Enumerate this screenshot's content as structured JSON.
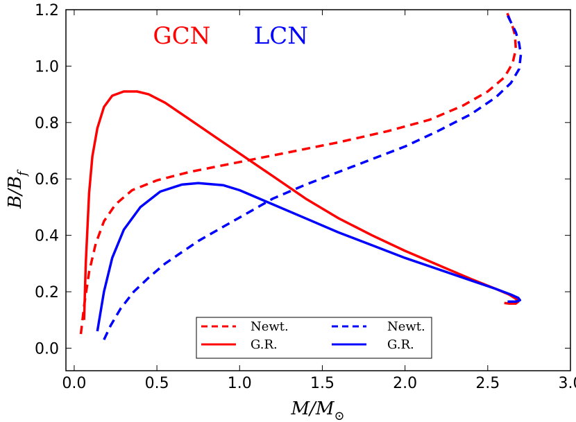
{
  "chart_data": {
    "type": "line",
    "title": "",
    "xlabel_main": "M/M",
    "xlabel_sub": "⊙",
    "ylabel_main": "B/B",
    "ylabel_sub": "f",
    "xlim": [
      -0.05,
      3.0
    ],
    "ylim": [
      -0.08,
      1.2
    ],
    "xticks": [
      0.0,
      0.5,
      1.0,
      1.5,
      2.0,
      2.5,
      3.0
    ],
    "xtick_labels": [
      "0.0",
      "0.5",
      "1.0",
      "1.5",
      "2.0",
      "2.5",
      "3.0"
    ],
    "yticks": [
      0.0,
      0.2,
      0.4,
      0.6,
      0.8,
      1.0,
      1.2
    ],
    "ytick_labels": [
      "0.0",
      "0.2",
      "0.4",
      "0.6",
      "0.8",
      "1.0",
      "1.2"
    ],
    "grid": false,
    "annotations": [
      {
        "text": "GCN",
        "color": "#ff0000",
        "x": 0.65,
        "y": 1.08
      },
      {
        "text": "LCN",
        "color": "#0000ff",
        "x": 1.25,
        "y": 1.08
      }
    ],
    "legend": {
      "placement": "bottom-center",
      "entries": [
        {
          "label": "Newt.",
          "color": "#ff0000",
          "style": "dashed"
        },
        {
          "label": "Newt.",
          "color": "#0000ff",
          "style": "dashed"
        },
        {
          "label": "G.R.",
          "color": "#ff0000",
          "style": "solid"
        },
        {
          "label": "G.R.",
          "color": "#0000ff",
          "style": "solid"
        }
      ]
    },
    "series": [
      {
        "name": "GCN Newt.",
        "color": "#ff0000",
        "style": "dashed",
        "x": [
          0.04,
          0.06,
          0.09,
          0.13,
          0.18,
          0.25,
          0.35,
          0.5,
          0.7,
          1.0,
          1.3,
          1.6,
          1.9,
          2.15,
          2.35,
          2.5,
          2.6,
          2.65,
          2.67,
          2.665,
          2.65,
          2.63,
          2.61
        ],
        "y": [
          0.05,
          0.15,
          0.27,
          0.37,
          0.45,
          0.51,
          0.56,
          0.595,
          0.625,
          0.66,
          0.695,
          0.73,
          0.77,
          0.81,
          0.86,
          0.91,
          0.96,
          1.01,
          1.06,
          1.11,
          1.14,
          1.17,
          1.2
        ]
      },
      {
        "name": "GCN G.R.",
        "color": "#ff0000",
        "style": "solid",
        "x": [
          0.06,
          0.07,
          0.09,
          0.11,
          0.14,
          0.18,
          0.23,
          0.3,
          0.38,
          0.45,
          0.55,
          0.7,
          0.85,
          1.0,
          1.2,
          1.4,
          1.6,
          1.8,
          2.0,
          2.2,
          2.4,
          2.55,
          2.63,
          2.67,
          2.685,
          2.67,
          2.63,
          2.6
        ],
        "y": [
          0.1,
          0.3,
          0.55,
          0.68,
          0.78,
          0.855,
          0.895,
          0.91,
          0.91,
          0.9,
          0.87,
          0.81,
          0.75,
          0.69,
          0.61,
          0.53,
          0.46,
          0.4,
          0.345,
          0.295,
          0.245,
          0.21,
          0.19,
          0.175,
          0.165,
          0.158,
          0.158,
          0.16
        ]
      },
      {
        "name": "LCN Newt.",
        "color": "#0000ff",
        "style": "dashed",
        "x": [
          0.18,
          0.22,
          0.28,
          0.36,
          0.45,
          0.55,
          0.65,
          0.75,
          0.9,
          1.05,
          1.2,
          1.4,
          1.6,
          1.8,
          2.0,
          2.2,
          2.4,
          2.55,
          2.64,
          2.69,
          2.7,
          2.69,
          2.67,
          2.645,
          2.62
        ],
        "y": [
          0.03,
          0.08,
          0.14,
          0.2,
          0.25,
          0.3,
          0.34,
          0.38,
          0.43,
          0.48,
          0.53,
          0.58,
          0.625,
          0.67,
          0.715,
          0.77,
          0.83,
          0.89,
          0.94,
          0.99,
          1.04,
          1.08,
          1.12,
          1.15,
          1.18
        ]
      },
      {
        "name": "LCN G.R.",
        "color": "#0000ff",
        "style": "solid",
        "x": [
          0.14,
          0.18,
          0.23,
          0.3,
          0.4,
          0.52,
          0.65,
          0.75,
          0.9,
          1.0,
          1.2,
          1.4,
          1.6,
          1.8,
          2.0,
          2.2,
          2.4,
          2.55,
          2.64,
          2.685,
          2.695,
          2.67,
          2.62
        ],
        "y": [
          0.06,
          0.2,
          0.32,
          0.42,
          0.5,
          0.555,
          0.58,
          0.585,
          0.578,
          0.56,
          0.51,
          0.46,
          0.41,
          0.365,
          0.32,
          0.28,
          0.24,
          0.21,
          0.19,
          0.178,
          0.17,
          0.165,
          0.165
        ]
      }
    ]
  }
}
